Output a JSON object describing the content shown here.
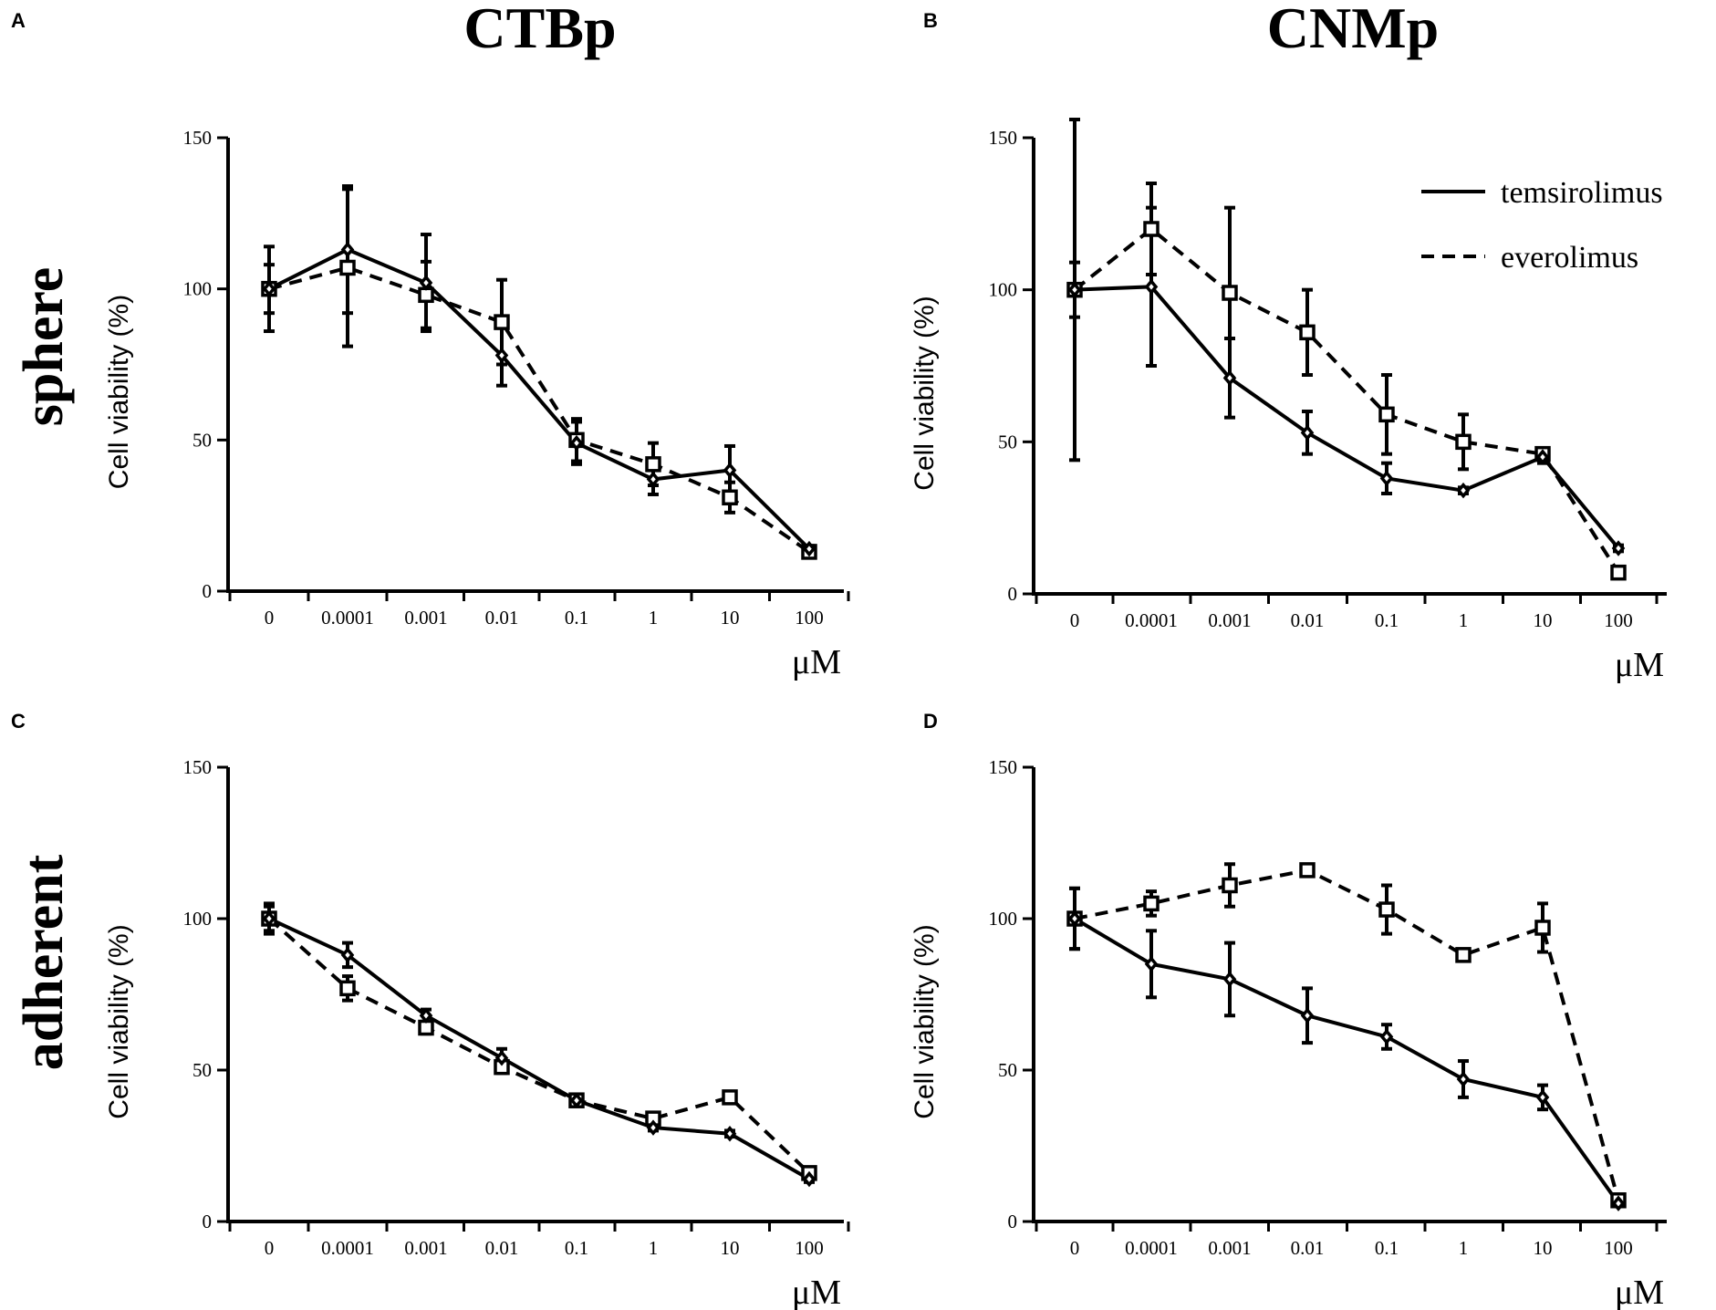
{
  "column_titles": [
    "CTBp",
    "CNMp"
  ],
  "row_labels": [
    "sphere",
    "adherent"
  ],
  "legend": {
    "solid_label": "temsirolimus",
    "dashed_label": "everolimus"
  },
  "chart_data": [
    {
      "panel": "A",
      "type": "line",
      "title": "CTBp",
      "row": "sphere",
      "xlabel": "μM",
      "ylabel": "Cell viability (%)",
      "categories": [
        "0",
        "0.0001",
        "0.001",
        "0.01",
        "0.1",
        "1",
        "10",
        "100"
      ],
      "ylim": [
        0,
        150
      ],
      "yticks": [
        0,
        50,
        100,
        150
      ],
      "series": [
        {
          "name": "temsirolimus",
          "style": "solid",
          "marker": "diamond",
          "values": [
            100,
            113,
            102,
            78,
            49,
            37,
            40,
            14
          ],
          "errors": [
            8,
            21,
            16,
            10,
            7,
            5,
            8,
            1
          ]
        },
        {
          "name": "everolimus",
          "style": "dashed",
          "marker": "square",
          "values": [
            100,
            107,
            98,
            89,
            50,
            42,
            31,
            13
          ],
          "errors": [
            14,
            26,
            11,
            14,
            7,
            7,
            5,
            1
          ]
        }
      ]
    },
    {
      "panel": "B",
      "type": "line",
      "title": "CNMp",
      "row": "sphere",
      "xlabel": "μM",
      "ylabel": "Cell viability (%)",
      "categories": [
        "0",
        "0.0001",
        "0.001",
        "0.01",
        "0.1",
        "1",
        "10",
        "100"
      ],
      "ylim": [
        0,
        150
      ],
      "yticks": [
        0,
        50,
        100,
        150
      ],
      "series": [
        {
          "name": "temsirolimus",
          "style": "solid",
          "marker": "diamond",
          "values": [
            100,
            101,
            71,
            53,
            38,
            34,
            45,
            15
          ],
          "errors": [
            9,
            26,
            13,
            7,
            5,
            1,
            2,
            1
          ]
        },
        {
          "name": "everolimus",
          "style": "dashed",
          "marker": "square",
          "values": [
            100,
            120,
            99,
            86,
            59,
            50,
            46,
            7
          ],
          "errors": [
            56,
            15,
            28,
            14,
            13,
            9,
            2,
            1
          ]
        }
      ]
    },
    {
      "panel": "C",
      "type": "line",
      "title": "CTBp",
      "row": "adherent",
      "xlabel": "μM",
      "ylabel": "Cell viability (%)",
      "categories": [
        "0",
        "0.0001",
        "0.001",
        "0.01",
        "0.1",
        "1",
        "10",
        "100"
      ],
      "ylim": [
        0,
        150
      ],
      "yticks": [
        0,
        50,
        100,
        150
      ],
      "series": [
        {
          "name": "temsirolimus",
          "style": "solid",
          "marker": "diamond",
          "values": [
            100,
            88,
            68,
            54,
            40,
            31,
            29,
            14
          ],
          "errors": [
            5,
            4,
            2,
            3,
            1,
            1,
            1,
            1
          ]
        },
        {
          "name": "everolimus",
          "style": "dashed",
          "marker": "square",
          "values": [
            100,
            77,
            64,
            51,
            40,
            34,
            41,
            16
          ],
          "errors": [
            4,
            4,
            2,
            2,
            1,
            1,
            1,
            1
          ]
        }
      ]
    },
    {
      "panel": "D",
      "type": "line",
      "title": "CNMp",
      "row": "adherent",
      "xlabel": "μM",
      "ylabel": "Cell viability (%)",
      "categories": [
        "0",
        "0.0001",
        "0.001",
        "0.01",
        "0.1",
        "1",
        "10",
        "100"
      ],
      "ylim": [
        0,
        150
      ],
      "yticks": [
        0,
        50,
        100,
        150
      ],
      "series": [
        {
          "name": "temsirolimus",
          "style": "solid",
          "marker": "diamond",
          "values": [
            100,
            85,
            80,
            68,
            61,
            47,
            41,
            6
          ],
          "errors": [
            10,
            11,
            12,
            9,
            4,
            6,
            4,
            1
          ]
        },
        {
          "name": "everolimus",
          "style": "dashed",
          "marker": "square",
          "values": [
            100,
            105,
            111,
            116,
            103,
            88,
            97,
            7
          ],
          "errors": [
            10,
            4,
            7,
            1,
            8,
            1,
            8,
            1
          ]
        }
      ]
    }
  ]
}
